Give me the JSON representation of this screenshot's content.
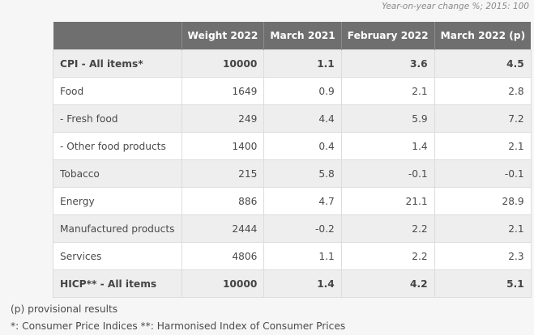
{
  "caption": "Year-on-year change %; 2015: 100",
  "table": {
    "headers": [
      "",
      "Weight 2022",
      "March 2021",
      "February 2022",
      "March 2022 (p)"
    ],
    "rows": [
      {
        "label": "CPI - All items*",
        "weight": "10000",
        "mar2021": "1.1",
        "feb2022": "3.6",
        "mar2022": "4.5",
        "bold": true
      },
      {
        "label": "Food",
        "weight": "1649",
        "mar2021": "0.9",
        "feb2022": "2.1",
        "mar2022": "2.8"
      },
      {
        "label": "- Fresh food",
        "weight": "249",
        "mar2021": "4.4",
        "feb2022": "5.9",
        "mar2022": "7.2"
      },
      {
        "label": "- Other food products",
        "weight": "1400",
        "mar2021": "0.4",
        "feb2022": "1.4",
        "mar2022": "2.1"
      },
      {
        "label": "Tobacco",
        "weight": "215",
        "mar2021": "5.8",
        "feb2022": "-0.1",
        "mar2022": "-0.1"
      },
      {
        "label": "Energy",
        "weight": "886",
        "mar2021": "4.7",
        "feb2022": "21.1",
        "mar2022": "28.9"
      },
      {
        "label": "Manufactured products",
        "weight": "2444",
        "mar2021": "-0.2",
        "feb2022": "2.2",
        "mar2022": "2.1"
      },
      {
        "label": "Services",
        "weight": "4806",
        "mar2021": "1.1",
        "feb2022": "2.2",
        "mar2022": "2.3"
      },
      {
        "label": "HICP** - All items",
        "weight": "10000",
        "mar2021": "1.4",
        "feb2022": "4.2",
        "mar2022": "5.1",
        "bold": true
      }
    ]
  },
  "notes": [
    "(p) provisional results",
    "*: Consumer Price Indices **: Harmonised Index of Consumer Prices"
  ],
  "colors": {
    "header_bg": "#6f6f6f",
    "header_text": "#ffffff",
    "row_shade": "#eeeeee",
    "row_plain": "#ffffff",
    "page_bg": "#f6f6f6"
  }
}
